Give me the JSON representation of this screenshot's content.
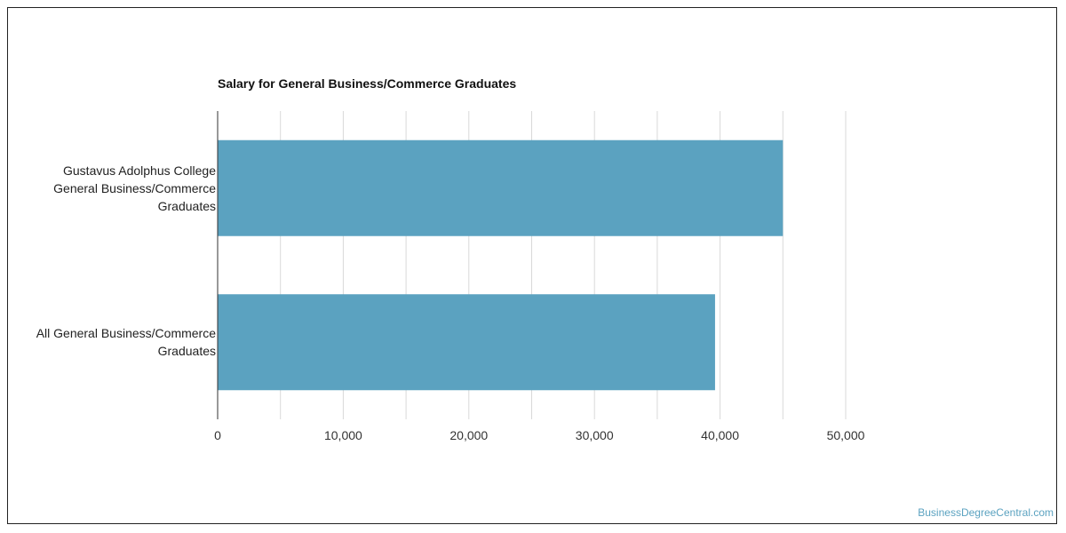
{
  "chart_data": {
    "type": "bar",
    "orientation": "horizontal",
    "title": "Salary for General Business/Commerce Graduates",
    "categories": [
      "Gustavus Adolphus College\nGeneral Business/Commerce\nGraduates",
      "All General Business/Commerce\nGraduates"
    ],
    "values": [
      45000,
      39600
    ],
    "xlim": [
      0,
      50000
    ],
    "x_ticks": [
      "0",
      "10,000",
      "20,000",
      "30,000",
      "40,000",
      "50,000"
    ],
    "grid": true,
    "bar_color": "#5ba2c0"
  },
  "watermark": "BusinessDegreeCentral.com"
}
